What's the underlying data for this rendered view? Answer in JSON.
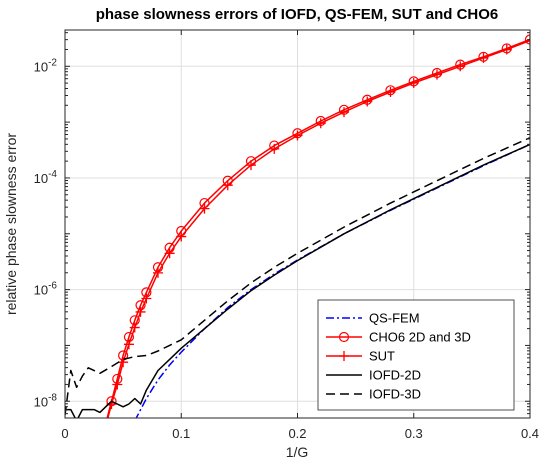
{
  "chart_data": {
    "type": "line",
    "title": "phase slowness errors of IOFD, QS-FEM, SUT and CHO6",
    "xlabel": "1/G",
    "ylabel": "relative phase slowness error",
    "xlim": [
      0,
      0.4
    ],
    "ylim_log10": [
      -8.3,
      -1.35
    ],
    "yscale": "log",
    "grid": true,
    "legend_position": "bottom-right",
    "xticks": [
      {
        "value": 0,
        "label": "0"
      },
      {
        "value": 0.1,
        "label": "0.1"
      },
      {
        "value": 0.2,
        "label": "0.2"
      },
      {
        "value": 0.3,
        "label": "0.3"
      },
      {
        "value": 0.4,
        "label": "0.4"
      }
    ],
    "yticks": [
      {
        "log10": -8,
        "base": "10",
        "exp": "-8"
      },
      {
        "log10": -6,
        "base": "10",
        "exp": "-6"
      },
      {
        "log10": -4,
        "base": "10",
        "exp": "-4"
      },
      {
        "log10": -2,
        "base": "10",
        "exp": "-2"
      }
    ],
    "series": [
      {
        "name": "QS-FEM",
        "color": "#0000ff",
        "style": "dashdot",
        "marker": "none",
        "x": [
          0.06,
          0.07,
          0.08,
          0.09,
          0.1,
          0.12,
          0.14,
          0.16,
          0.18,
          0.2,
          0.24,
          0.28,
          0.32,
          0.36,
          0.4
        ],
        "y": [
          -8.35,
          -7.95,
          -7.62,
          -7.35,
          -7.12,
          -6.7,
          -6.32,
          -6.0,
          -5.72,
          -5.47,
          -5.0,
          -4.58,
          -4.18,
          -3.78,
          -3.4
        ]
      },
      {
        "name": "CHO6 2D and 3D",
        "color": "#ff0000",
        "style": "solid",
        "marker": "circle",
        "x": [
          0.035,
          0.04,
          0.045,
          0.05,
          0.055,
          0.06,
          0.065,
          0.07,
          0.08,
          0.09,
          0.1,
          0.12,
          0.14,
          0.16,
          0.18,
          0.2,
          0.22,
          0.24,
          0.26,
          0.28,
          0.3,
          0.32,
          0.34,
          0.36,
          0.38,
          0.4
        ],
        "y": [
          -8.4,
          -8.0,
          -7.6,
          -7.18,
          -6.85,
          -6.55,
          -6.28,
          -6.05,
          -5.6,
          -5.25,
          -4.95,
          -4.45,
          -4.05,
          -3.7,
          -3.42,
          -3.2,
          -2.98,
          -2.78,
          -2.6,
          -2.43,
          -2.27,
          -2.12,
          -1.97,
          -1.83,
          -1.68,
          -1.52
        ]
      },
      {
        "name": "SUT",
        "color": "#ff0000",
        "style": "solid",
        "marker": "plus",
        "x": [
          0.035,
          0.04,
          0.045,
          0.05,
          0.055,
          0.06,
          0.065,
          0.07,
          0.08,
          0.09,
          0.1,
          0.12,
          0.14,
          0.16,
          0.18,
          0.2,
          0.22,
          0.24,
          0.26,
          0.28,
          0.3,
          0.32,
          0.34,
          0.36,
          0.38,
          0.4
        ],
        "y": [
          -8.45,
          -8.05,
          -7.7,
          -7.3,
          -6.98,
          -6.68,
          -6.4,
          -6.16,
          -5.7,
          -5.35,
          -5.05,
          -4.55,
          -4.13,
          -3.77,
          -3.48,
          -3.24,
          -3.02,
          -2.82,
          -2.63,
          -2.46,
          -2.3,
          -2.15,
          -2.0,
          -1.85,
          -1.7,
          -1.54
        ]
      },
      {
        "name": "IOFD-2D",
        "color": "#000000",
        "style": "solid",
        "marker": "none",
        "x": [
          0.0,
          0.005,
          0.01,
          0.015,
          0.02,
          0.025,
          0.03,
          0.035,
          0.04,
          0.045,
          0.05,
          0.055,
          0.06,
          0.065,
          0.07,
          0.08,
          0.09,
          0.1,
          0.12,
          0.14,
          0.16,
          0.18,
          0.2,
          0.24,
          0.28,
          0.32,
          0.36,
          0.4
        ],
        "y": [
          -8.15,
          -8.15,
          -8.35,
          -8.15,
          -8.15,
          -8.15,
          -8.2,
          -8.1,
          -8.0,
          -8.05,
          -8.1,
          -8.05,
          -7.95,
          -8.05,
          -7.8,
          -7.45,
          -7.25,
          -7.05,
          -6.7,
          -6.35,
          -6.02,
          -5.74,
          -5.48,
          -5.0,
          -4.57,
          -4.17,
          -3.77,
          -3.4
        ]
      },
      {
        "name": "IOFD-3D",
        "color": "#000000",
        "style": "dashed",
        "marker": "none",
        "x": [
          0.0,
          0.005,
          0.01,
          0.015,
          0.02,
          0.03,
          0.04,
          0.05,
          0.06,
          0.07,
          0.08,
          0.09,
          0.1,
          0.12,
          0.14,
          0.16,
          0.18,
          0.2,
          0.24,
          0.28,
          0.32,
          0.36,
          0.4
        ],
        "y": [
          -8.25,
          -7.45,
          -7.75,
          -7.55,
          -7.4,
          -7.5,
          -7.38,
          -7.25,
          -7.2,
          -7.18,
          -7.1,
          -7.0,
          -6.9,
          -6.55,
          -6.2,
          -5.88,
          -5.6,
          -5.35,
          -4.88,
          -4.45,
          -4.05,
          -3.65,
          -3.28
        ]
      }
    ]
  }
}
